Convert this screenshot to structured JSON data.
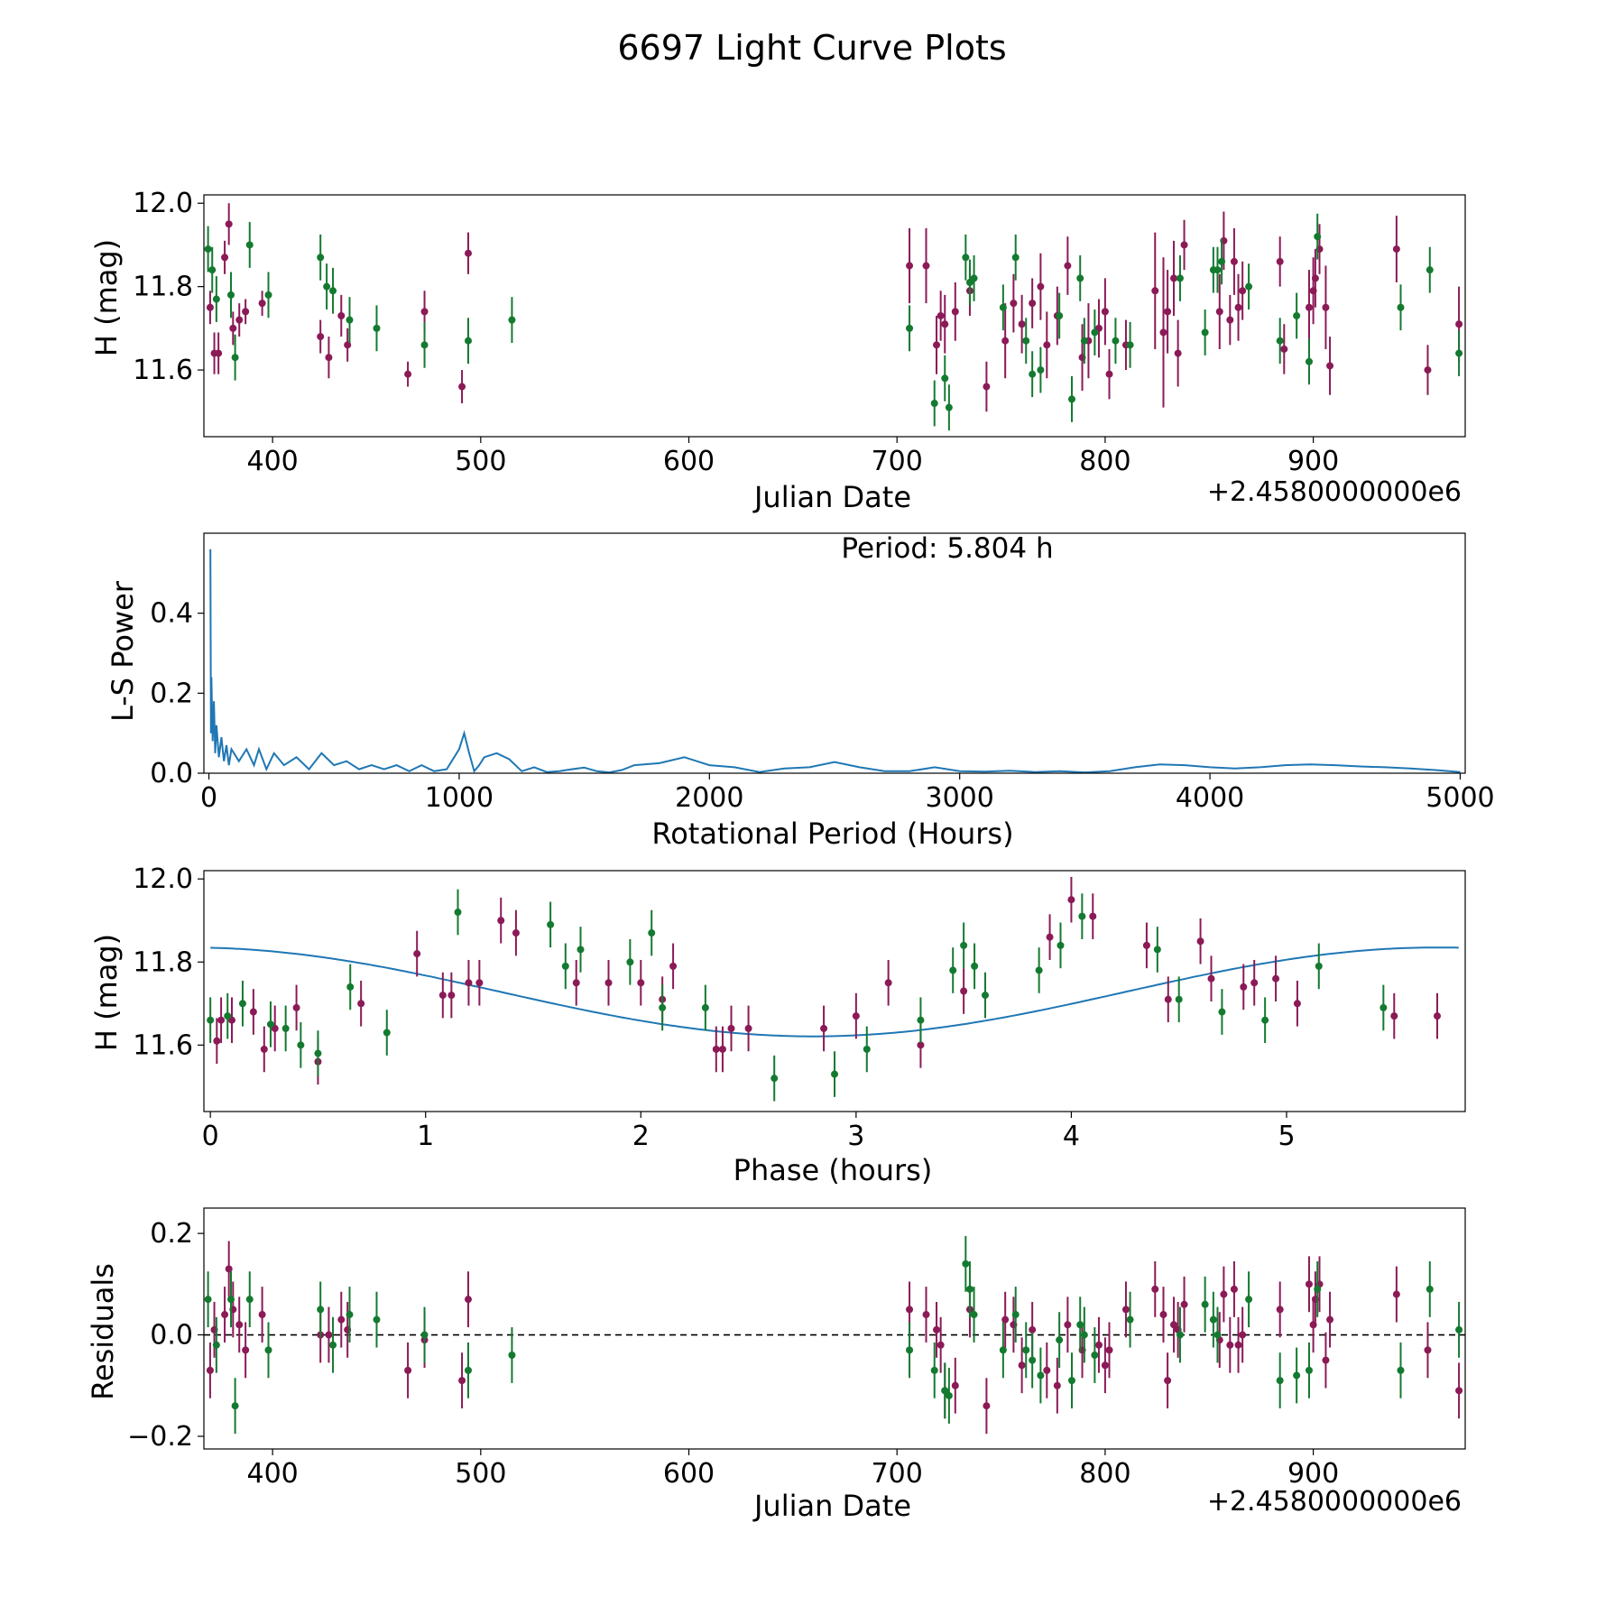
{
  "figure": {
    "title": "6697 Light Curve Plots",
    "colors": {
      "filter_a": "#8b1a57",
      "filter_b": "#147a30",
      "model": "#1f77b4",
      "zero_line": "#000000"
    }
  },
  "chart_data": [
    {
      "id": "lightcurve",
      "type": "scatter",
      "xlabel": "Julian Date",
      "ylabel": "H (mag)",
      "offset_text": "+2.4580000000e6",
      "xlim": [
        367,
        973
      ],
      "ylim": [
        11.44,
        12.02
      ],
      "xticks": [
        400,
        500,
        600,
        700,
        800,
        900
      ],
      "xticklabels": [
        "400",
        "500",
        "600",
        "700",
        "800",
        "900"
      ],
      "yticks": [
        11.6,
        11.8,
        12.0
      ],
      "yticklabels": [
        "11.6",
        "11.8",
        "12.0"
      ],
      "series": [
        {
          "name": "filter_a",
          "color": "#8b1a57",
          "x": [
            370,
            372,
            374,
            377,
            379,
            381,
            384,
            387,
            395,
            423,
            427,
            433,
            436,
            465,
            473,
            491,
            494,
            706,
            714,
            719,
            721,
            723,
            728,
            735,
            743,
            752,
            756,
            760,
            765,
            769,
            772,
            777,
            782,
            789,
            792,
            797,
            800,
            802,
            810,
            824,
            828,
            830,
            833,
            835,
            838,
            855,
            857,
            860,
            862,
            864,
            866,
            884,
            886,
            898,
            900,
            901,
            903,
            906,
            908,
            940,
            955,
            970
          ],
          "y": [
            11.75,
            11.64,
            11.64,
            11.87,
            11.95,
            11.7,
            11.72,
            11.74,
            11.76,
            11.68,
            11.63,
            11.73,
            11.66,
            11.59,
            11.74,
            11.56,
            11.88,
            11.85,
            11.85,
            11.66,
            11.73,
            11.71,
            11.74,
            11.79,
            11.56,
            11.67,
            11.76,
            11.71,
            11.76,
            11.8,
            11.66,
            11.73,
            11.85,
            11.63,
            11.67,
            11.7,
            11.74,
            11.59,
            11.66,
            11.79,
            11.69,
            11.74,
            11.82,
            11.64,
            11.9,
            11.74,
            11.91,
            11.72,
            11.86,
            11.75,
            11.79,
            11.86,
            11.65,
            11.75,
            11.79,
            11.82,
            11.89,
            11.75,
            11.61,
            11.89,
            11.6,
            11.71
          ],
          "err": [
            0.04,
            0.05,
            0.05,
            0.04,
            0.05,
            0.04,
            0.04,
            0.03,
            0.03,
            0.04,
            0.05,
            0.05,
            0.04,
            0.03,
            0.05,
            0.04,
            0.05,
            0.09,
            0.09,
            0.07,
            0.06,
            0.07,
            0.07,
            0.06,
            0.06,
            0.09,
            0.07,
            0.07,
            0.06,
            0.08,
            0.08,
            0.07,
            0.07,
            0.08,
            0.09,
            0.07,
            0.08,
            0.06,
            0.06,
            0.14,
            0.18,
            0.1,
            0.09,
            0.08,
            0.06,
            0.09,
            0.07,
            0.06,
            0.08,
            0.08,
            0.07,
            0.06,
            0.06,
            0.09,
            0.08,
            0.07,
            0.06,
            0.1,
            0.07,
            0.08,
            0.06,
            0.09
          ]
        },
        {
          "name": "filter_b",
          "color": "#147a30",
          "x": [
            369,
            371,
            373,
            380,
            382,
            389,
            398,
            423,
            426,
            429,
            437,
            450,
            473,
            494,
            515,
            706,
            718,
            723,
            725,
            733,
            735,
            737,
            751,
            757,
            762,
            765,
            769,
            778,
            784,
            788,
            790,
            795,
            805,
            812,
            836,
            848,
            852,
            854,
            856,
            869,
            884,
            892,
            898,
            902,
            942,
            956,
            970
          ],
          "y": [
            11.89,
            11.84,
            11.77,
            11.78,
            11.63,
            11.9,
            11.78,
            11.87,
            11.8,
            11.79,
            11.72,
            11.7,
            11.66,
            11.67,
            11.72,
            11.7,
            11.52,
            11.58,
            11.51,
            11.87,
            11.81,
            11.82,
            11.75,
            11.87,
            11.67,
            11.59,
            11.6,
            11.73,
            11.53,
            11.82,
            11.67,
            11.69,
            11.67,
            11.66,
            11.82,
            11.69,
            11.84,
            11.84,
            11.86,
            11.8,
            11.67,
            11.73,
            11.62,
            11.92,
            11.75,
            11.84,
            11.64
          ]
        }
      ]
    },
    {
      "id": "periodogram",
      "type": "line",
      "xlabel": "Rotational Period (Hours)",
      "ylabel": "L-S Power",
      "annotation": "Period: 5.804 h",
      "xlim": [
        -20,
        5020
      ],
      "ylim": [
        0,
        0.6
      ],
      "xticks": [
        0,
        1000,
        2000,
        3000,
        4000,
        5000
      ],
      "xticklabels": [
        "0",
        "1000",
        "2000",
        "3000",
        "4000",
        "5000"
      ],
      "yticks": [
        0.0,
        0.2,
        0.4
      ],
      "yticklabels": [
        "0.0",
        "0.2",
        "0.4"
      ],
      "x": [
        5.8,
        8,
        10,
        15,
        20,
        25,
        30,
        40,
        50,
        60,
        70,
        80,
        90,
        100,
        120,
        150,
        180,
        200,
        230,
        260,
        300,
        350,
        400,
        450,
        500,
        550,
        600,
        650,
        700,
        750,
        800,
        850,
        900,
        950,
        980,
        1000,
        1020,
        1040,
        1060,
        1080,
        1100,
        1150,
        1200,
        1250,
        1300,
        1350,
        1400,
        1450,
        1500,
        1550,
        1600,
        1650,
        1700,
        1800,
        1900,
        2000,
        2100,
        2200,
        2300,
        2400,
        2500,
        2600,
        2700,
        2800,
        2900,
        3000,
        3100,
        3200,
        3300,
        3400,
        3500,
        3600,
        3700,
        3800,
        3900,
        4000,
        4100,
        4200,
        4300,
        4400,
        4500,
        4600,
        4700,
        4800,
        4900,
        5000
      ],
      "y": [
        0.56,
        0.1,
        0.24,
        0.08,
        0.18,
        0.05,
        0.12,
        0.04,
        0.09,
        0.03,
        0.07,
        0.02,
        0.06,
        0.05,
        0.03,
        0.06,
        0.02,
        0.06,
        0.01,
        0.05,
        0.02,
        0.04,
        0.01,
        0.05,
        0.02,
        0.03,
        0.01,
        0.02,
        0.01,
        0.02,
        0.005,
        0.02,
        0.005,
        0.01,
        0.04,
        0.06,
        0.1,
        0.05,
        0.005,
        0.02,
        0.04,
        0.05,
        0.035,
        0.005,
        0.015,
        0.003,
        0.005,
        0.01,
        0.014,
        0.005,
        0.002,
        0.008,
        0.02,
        0.025,
        0.04,
        0.02,
        0.015,
        0.003,
        0.012,
        0.015,
        0.028,
        0.015,
        0.005,
        0.005,
        0.015,
        0.005,
        0.004,
        0.006,
        0.003,
        0.005,
        0.002,
        0.005,
        0.015,
        0.022,
        0.02,
        0.015,
        0.012,
        0.015,
        0.02,
        0.022,
        0.02,
        0.017,
        0.015,
        0.012,
        0.008,
        0.003
      ]
    },
    {
      "id": "phased",
      "type": "scatter",
      "xlabel": "Phase (hours)",
      "ylabel": "H (mag)",
      "xlim": [
        -0.03,
        5.83
      ],
      "ylim": [
        11.44,
        12.02
      ],
      "xticks": [
        0,
        1,
        2,
        3,
        4,
        5
      ],
      "xticklabels": [
        "0",
        "1",
        "2",
        "3",
        "4",
        "5"
      ],
      "yticks": [
        11.6,
        11.8,
        12.0
      ],
      "yticklabels": [
        "11.6",
        "11.8",
        "12.0"
      ],
      "model": {
        "period": 5.804,
        "mean": 11.728,
        "amplitude": 0.107,
        "phase_min": 2.8
      },
      "series": [
        {
          "name": "filter_a",
          "color": "#8b1a57",
          "x": [
            0.03,
            0.05,
            0.1,
            0.2,
            0.25,
            0.3,
            0.4,
            0.5,
            0.7,
            0.96,
            1.08,
            1.12,
            1.2,
            1.25,
            1.35,
            1.42,
            1.7,
            1.85,
            2.0,
            2.1,
            2.15,
            2.35,
            2.38,
            2.42,
            2.5,
            2.85,
            3.0,
            3.15,
            3.3,
            3.5,
            3.9,
            4.0,
            4.1,
            4.35,
            4.45,
            4.6,
            4.65,
            4.8,
            4.85,
            4.95,
            5.05,
            5.5,
            5.7
          ],
          "y": [
            11.61,
            11.66,
            11.66,
            11.68,
            11.59,
            11.64,
            11.69,
            11.56,
            11.7,
            11.82,
            11.72,
            11.72,
            11.75,
            11.75,
            11.9,
            11.87,
            11.75,
            11.75,
            11.75,
            11.71,
            11.79,
            11.59,
            11.59,
            11.64,
            11.64,
            11.64,
            11.67,
            11.75,
            11.6,
            11.73,
            11.86,
            11.95,
            11.91,
            11.84,
            11.71,
            11.85,
            11.76,
            11.74,
            11.75,
            11.76,
            11.7,
            11.67,
            11.67
          ]
        },
        {
          "name": "filter_b",
          "color": "#147a30",
          "x": [
            0.0,
            0.08,
            0.15,
            0.28,
            0.35,
            0.42,
            0.5,
            0.65,
            0.82,
            1.15,
            1.58,
            1.65,
            1.72,
            1.95,
            2.05,
            2.1,
            2.3,
            2.62,
            2.9,
            3.05,
            3.3,
            3.45,
            3.5,
            3.55,
            3.6,
            3.85,
            3.95,
            4.05,
            4.4,
            4.5,
            4.7,
            4.9,
            5.15,
            5.45
          ],
          "y": [
            11.66,
            11.67,
            11.7,
            11.65,
            11.64,
            11.6,
            11.58,
            11.74,
            11.63,
            11.92,
            11.89,
            11.79,
            11.83,
            11.8,
            11.87,
            11.69,
            11.69,
            11.52,
            11.53,
            11.59,
            11.66,
            11.78,
            11.84,
            11.79,
            11.72,
            11.78,
            11.84,
            11.91,
            11.83,
            11.71,
            11.68,
            11.66,
            11.79,
            11.69
          ]
        }
      ]
    },
    {
      "id": "residuals",
      "type": "scatter",
      "xlabel": "Julian Date",
      "ylabel": "Residuals",
      "offset_text": "+2.4580000000e6",
      "xlim": [
        367,
        973
      ],
      "ylim": [
        -0.225,
        0.25
      ],
      "xticks": [
        400,
        500,
        600,
        700,
        800,
        900
      ],
      "xticklabels": [
        "400",
        "500",
        "600",
        "700",
        "800",
        "900"
      ],
      "yticks": [
        -0.2,
        0.0,
        0.2
      ],
      "yticklabels": [
        "−0.2",
        "0.0",
        "0.2"
      ],
      "series": [
        {
          "name": "filter_a",
          "color": "#8b1a57",
          "x": [
            370,
            372,
            377,
            379,
            381,
            384,
            387,
            395,
            423,
            427,
            433,
            436,
            465,
            473,
            491,
            494,
            706,
            714,
            719,
            721,
            723,
            728,
            735,
            743,
            752,
            756,
            760,
            765,
            772,
            777,
            782,
            789,
            797,
            800,
            802,
            810,
            824,
            828,
            830,
            833,
            835,
            838,
            855,
            857,
            860,
            862,
            864,
            866,
            884,
            898,
            900,
            901,
            903,
            906,
            908,
            940,
            955,
            970
          ],
          "y": [
            -0.07,
            0.01,
            0.04,
            0.13,
            0.05,
            0.02,
            -0.03,
            0.04,
            0.0,
            0.0,
            0.03,
            0.01,
            -0.07,
            -0.01,
            -0.09,
            0.07,
            0.05,
            0.04,
            0.01,
            -0.02,
            -0.11,
            -0.1,
            0.05,
            -0.14,
            0.03,
            0.02,
            -0.06,
            0.01,
            -0.07,
            -0.1,
            0.02,
            -0.03,
            -0.02,
            -0.06,
            -0.03,
            0.05,
            0.09,
            0.04,
            -0.09,
            0.02,
            0.01,
            0.06,
            -0.01,
            0.08,
            -0.02,
            0.09,
            -0.02,
            0.0,
            0.05,
            0.1,
            0.02,
            0.07,
            0.1,
            -0.05,
            0.03,
            0.08,
            -0.03,
            -0.11
          ]
        },
        {
          "name": "filter_b",
          "color": "#147a30",
          "x": [
            369,
            373,
            380,
            382,
            389,
            398,
            423,
            429,
            437,
            450,
            473,
            494,
            515,
            706,
            718,
            723,
            725,
            733,
            735,
            737,
            751,
            757,
            762,
            765,
            769,
            778,
            784,
            788,
            790,
            795,
            812,
            836,
            848,
            852,
            854,
            869,
            884,
            892,
            898,
            902,
            942,
            956,
            970
          ],
          "y": [
            0.07,
            -0.02,
            0.07,
            -0.14,
            0.07,
            -0.03,
            0.05,
            -0.02,
            0.04,
            0.03,
            0.0,
            -0.07,
            -0.04,
            -0.03,
            -0.07,
            -0.11,
            -0.12,
            0.14,
            0.09,
            0.04,
            -0.03,
            0.04,
            -0.03,
            -0.05,
            -0.08,
            -0.01,
            -0.09,
            0.02,
            0.0,
            -0.04,
            0.03,
            0.0,
            0.06,
            0.03,
            0.0,
            0.07,
            -0.09,
            -0.08,
            -0.07,
            0.09,
            -0.07,
            0.09,
            0.01
          ]
        }
      ]
    }
  ]
}
